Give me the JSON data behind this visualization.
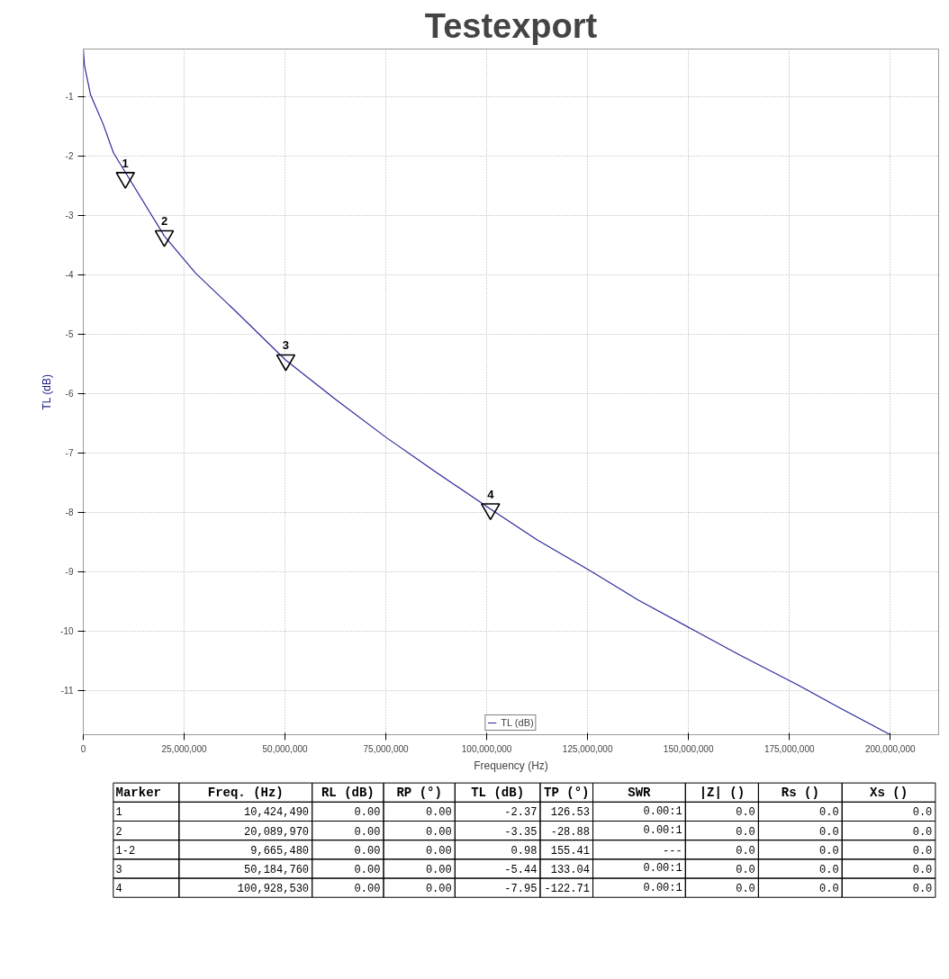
{
  "chart_data": [
    {
      "type": "line",
      "title": "Testexport",
      "xlabel": "Frequency (Hz)",
      "ylabel": "TL (dB)",
      "series": [
        {
          "name": "TL (dB)",
          "color": "#2b2b9a",
          "x": [
            0,
            300000,
            1800000,
            4900000,
            7500000,
            20090000,
            27900000,
            37500000,
            50180000,
            62500000,
            75200000,
            87500000,
            100930000,
            112500000,
            125900000,
            137500000,
            151600000,
            162500000,
            176800000,
            187500000,
            200000000
          ],
          "values": [
            -0.2,
            -0.48,
            -0.97,
            -1.46,
            -1.95,
            -3.35,
            -3.98,
            -4.6,
            -5.44,
            -6.1,
            -6.75,
            -7.33,
            -7.95,
            -8.47,
            -9.0,
            -9.48,
            -10.0,
            -10.4,
            -10.9,
            -11.3,
            -11.75
          ]
        },
        {
          "type": "scatter",
          "marker": "triangle",
          "color": "#000000",
          "x": [
            10424490,
            20089970,
            50184760,
            100928530
          ],
          "values": [
            -2.37,
            -3.35,
            -5.44,
            -7.95
          ]
        }
      ],
      "annotations": [
        {
          "text": "1",
          "x": 10424490,
          "y": -2.37
        },
        {
          "text": "2",
          "x": 20089970,
          "y": -3.35
        },
        {
          "text": "3",
          "x": 50184760,
          "y": -5.44
        },
        {
          "text": "4",
          "x": 100928530,
          "y": -7.95
        }
      ],
      "xlim": [
        0,
        212000000
      ],
      "ylim": [
        -11.75,
        -0.2
      ],
      "xticks": [
        0,
        {
          "value": 25000000,
          "label": "25,000,000"
        },
        {
          "value": 50000000,
          "label": "50,000,000"
        },
        {
          "value": 75000000,
          "label": "75,000,000"
        },
        {
          "value": 100000000,
          "label": "100,000,000"
        },
        {
          "value": 125000000,
          "label": "125,000,000"
        },
        {
          "value": 150000000,
          "label": "150,000,000"
        },
        {
          "value": 175000000,
          "label": "175,000,000"
        },
        {
          "value": 200000000,
          "label": "200,000,000"
        }
      ],
      "yticks": [
        -1,
        -2,
        -3,
        -4,
        -5,
        -6,
        -7,
        -8,
        -9,
        -10,
        -11
      ],
      "grid": true,
      "legend": "bottom",
      "line_style": "solid"
    },
    {
      "type": "other",
      "categories": [
        "Marker",
        "Freq. (Hz)",
        "RL (dB)",
        "RP (°)",
        "TL (dB)",
        "TP (°)",
        "SWR",
        "|Z| ()",
        "Rs ()",
        "Xs ()"
      ],
      "cell_labels": [
        [
          "1",
          "10,424,490",
          "0.00",
          "0.00",
          "-2.37",
          "126.53",
          "0.00:1",
          "0.0",
          "0.0",
          "0.0"
        ],
        [
          "2",
          "20,089,970",
          "0.00",
          "0.00",
          "-3.35",
          "-28.88",
          "0.00:1",
          "0.0",
          "0.0",
          "0.0"
        ],
        [
          "1-2",
          "9,665,480",
          "0.00",
          "0.00",
          "0.98",
          "155.41",
          "---",
          "0.0",
          "0.0",
          "0.0"
        ],
        [
          "3",
          "50,184,760",
          "0.00",
          "0.00",
          "-5.44",
          "133.04",
          "0.00:1",
          "0.0",
          "0.0",
          "0.0"
        ],
        [
          "4",
          "100,928,530",
          "0.00",
          "0.00",
          "-7.95",
          "-122.71",
          "0.00:1",
          "0.0",
          "0.0",
          "0.0"
        ]
      ]
    }
  ]
}
